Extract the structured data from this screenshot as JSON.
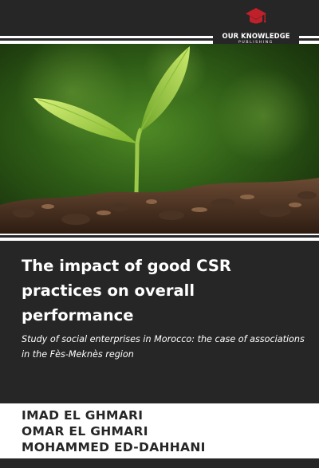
{
  "publisher": {
    "name": "OUR KNOWLEDGE",
    "tagline": "PUBLISHING",
    "icon": "graduation-cap-icon",
    "accent_color": "#c0202a"
  },
  "book": {
    "title": "The impact of good CSR practices on overall performance",
    "subtitle": "Study of social enterprises in Morocco: the case of associations in the Fès-Meknès region",
    "authors": [
      "IMAD EL GHMARI",
      "OMAR EL GHMARI",
      "MOHAMMED ED-DAHHANI"
    ]
  },
  "colors": {
    "band": "#262626",
    "text_light": "#ffffff",
    "text_dark": "#262626"
  }
}
